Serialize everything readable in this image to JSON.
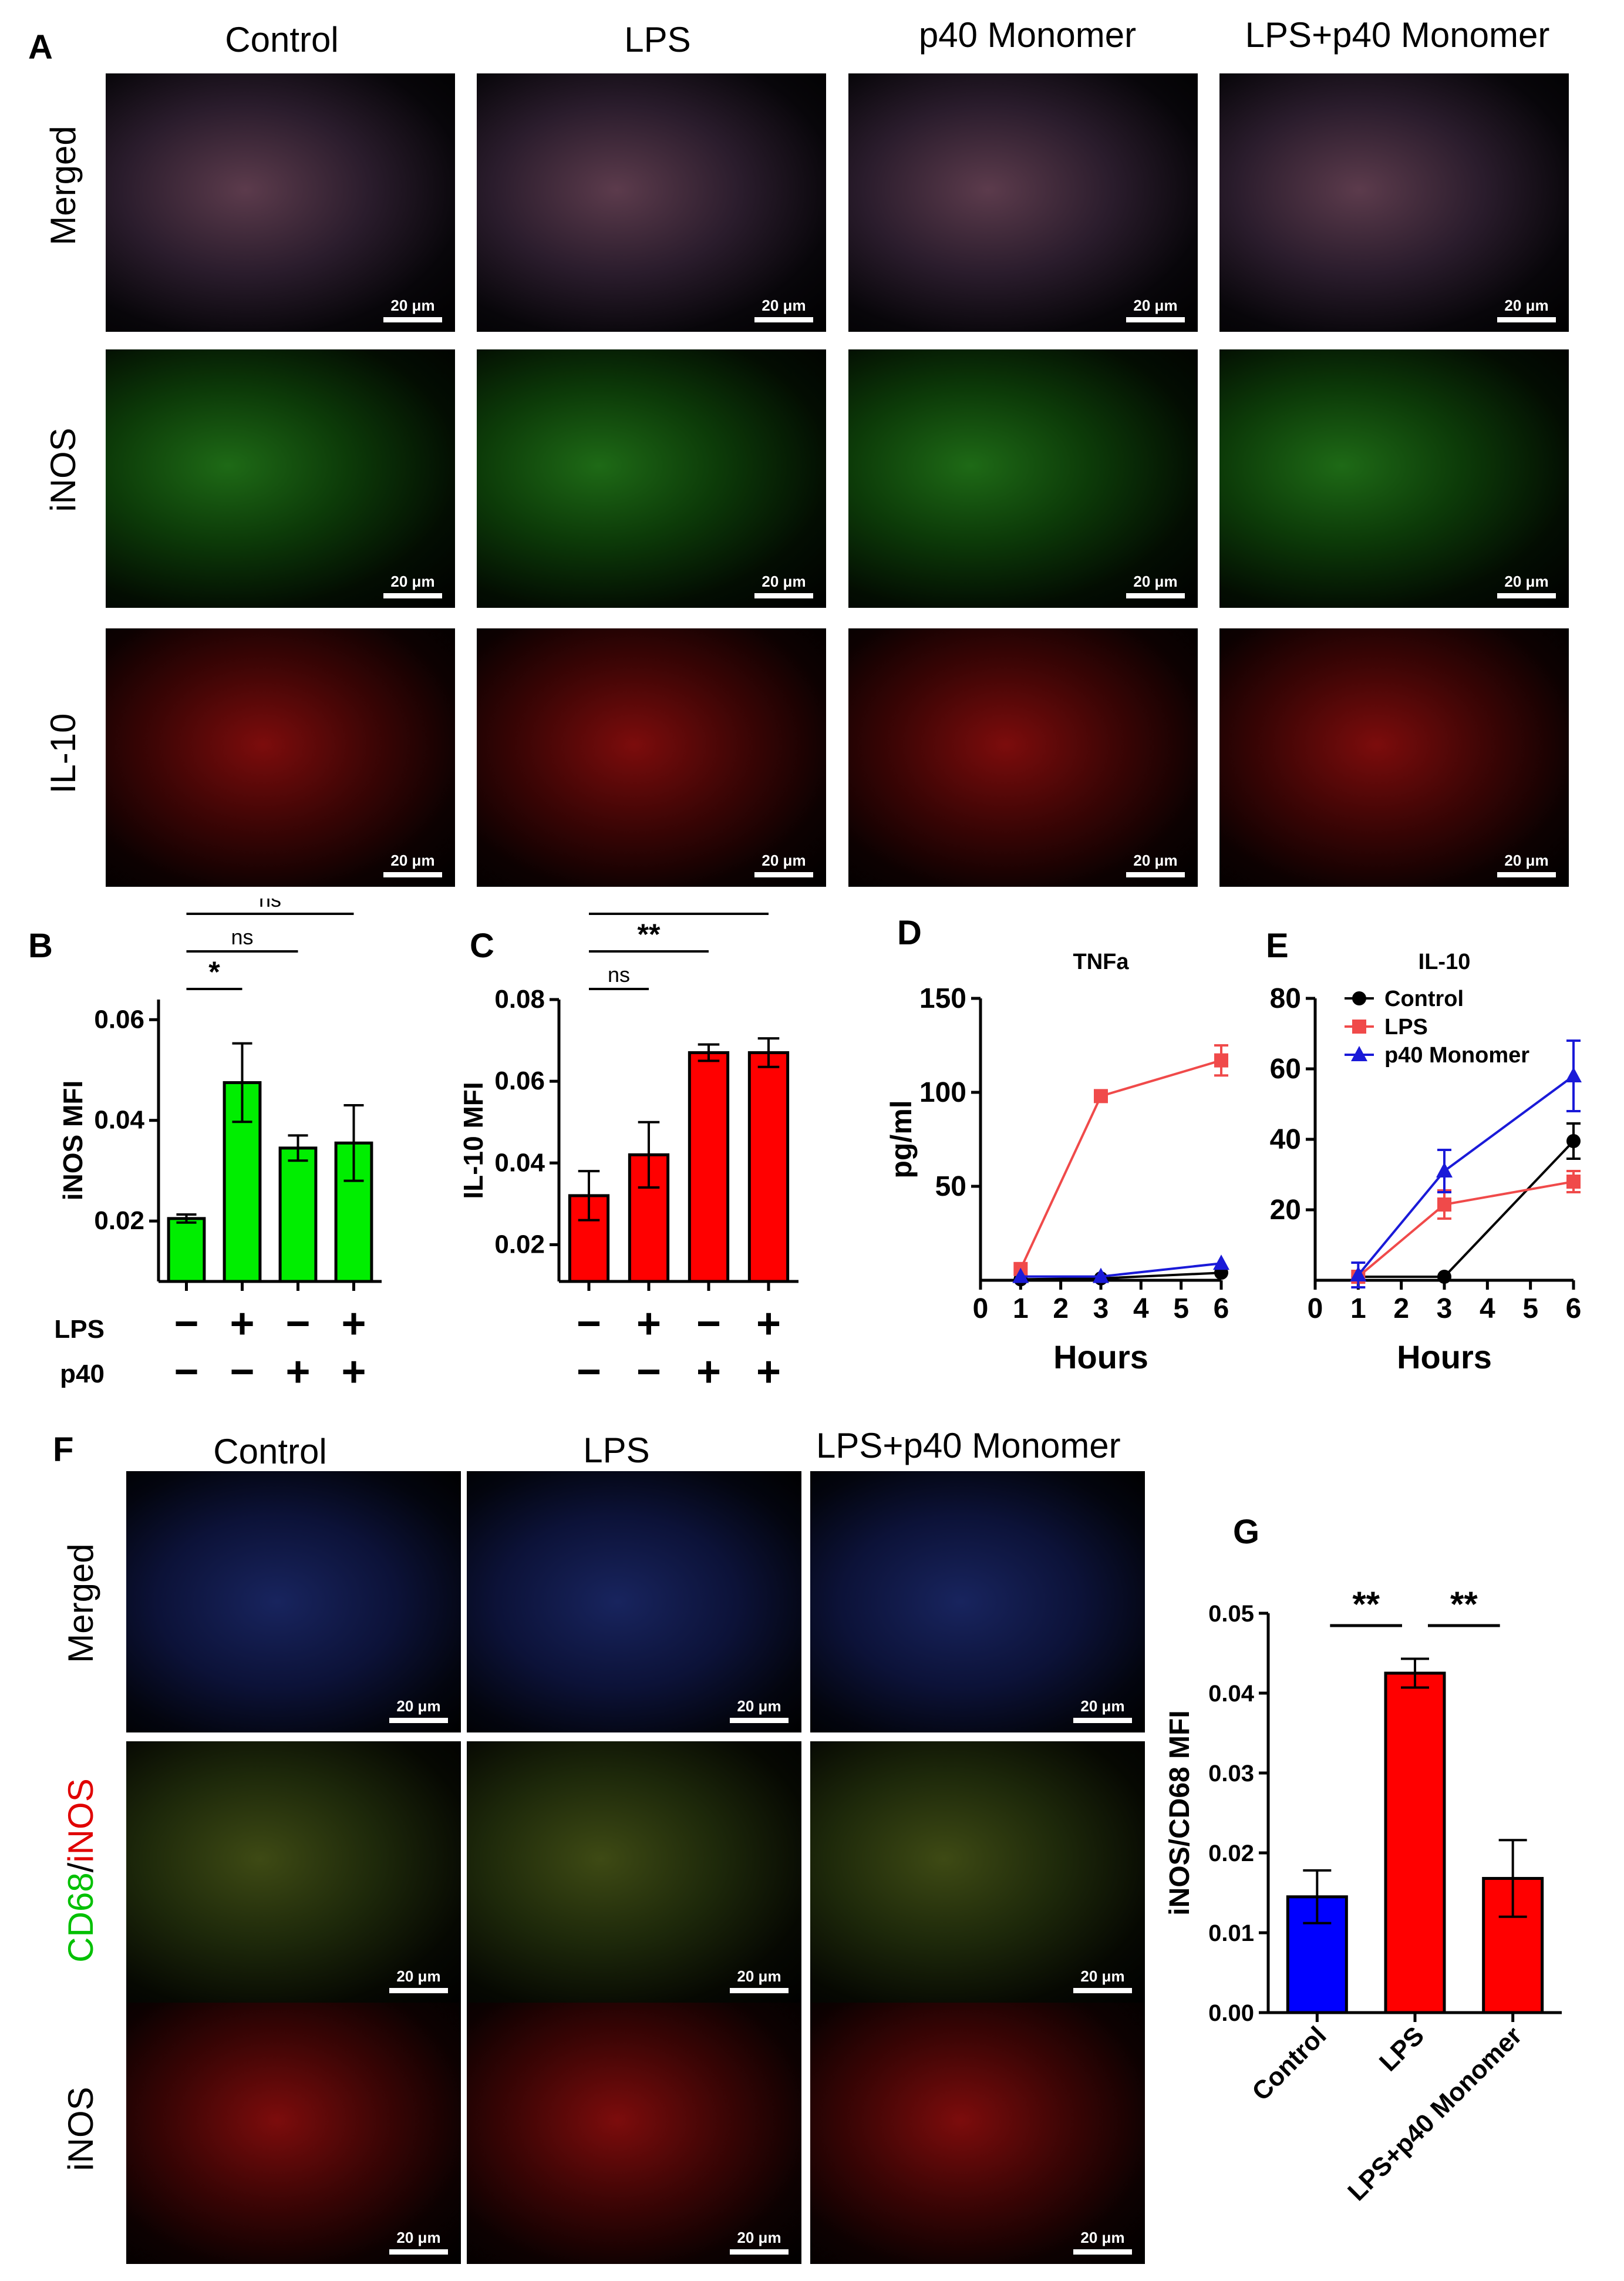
{
  "panel_letters": {
    "A": "A",
    "B": "B",
    "C": "C",
    "D": "D",
    "E": "E",
    "F": "F",
    "G": "G"
  },
  "panelA": {
    "columns": [
      "Control",
      "LPS",
      "p40 Monomer",
      "LPS+p40 Monomer"
    ],
    "rows": [
      "Merged",
      "iNOS",
      "IL-10"
    ],
    "scale_bar": "20 μm"
  },
  "panelF": {
    "columns": [
      "Control",
      "LPS",
      "LPS+p40 Monomer"
    ],
    "rows": [
      "Merged",
      "CD68/iNOS",
      "iNOS"
    ],
    "row_label_parts": {
      "cd68": "CD68",
      "slash": "/",
      "inos": "iNOS"
    },
    "scale_bar": "20 μm"
  },
  "colors": {
    "green": "#00ee00",
    "red": "#ff0000",
    "blue": "#0000ff",
    "black": "#000000",
    "lps_line": "#f04a4a",
    "p40_line": "#1a1ad8"
  },
  "treatment_labels": {
    "lps": "LPS",
    "p40": "p40",
    "minus": "−",
    "plus": "+"
  },
  "chart_data": [
    {
      "id": "B",
      "type": "bar",
      "ylabel": "iNOS MFI",
      "yticks": [
        "0.02",
        "0.04",
        "0.06"
      ],
      "ylim": [
        0.008,
        0.064
      ],
      "values": [
        0.0205,
        0.0475,
        0.0345,
        0.0355
      ],
      "errors": [
        0.0008,
        0.0078,
        0.0025,
        0.0075
      ],
      "color": "#00ee00",
      "lps": [
        "−",
        "+",
        "−",
        "+"
      ],
      "p40": [
        "−",
        "−",
        "+",
        "+"
      ],
      "sig": [
        {
          "from": 0,
          "to": 1,
          "text": "*"
        },
        {
          "from": 0,
          "to": 2,
          "text": "ns"
        },
        {
          "from": 0,
          "to": 3,
          "text": "ns"
        }
      ]
    },
    {
      "id": "C",
      "type": "bar",
      "ylabel": "IL-10 MFI",
      "yticks": [
        "0.02",
        "0.04",
        "0.06",
        "0.08"
      ],
      "ylim": [
        0.011,
        0.08
      ],
      "values": [
        0.032,
        0.042,
        0.067,
        0.067
      ],
      "errors": [
        0.006,
        0.008,
        0.002,
        0.0035
      ],
      "color": "#ff0000",
      "lps": [
        "−",
        "+",
        "−",
        "+"
      ],
      "p40": [
        "−",
        "−",
        "+",
        "+"
      ],
      "sig": [
        {
          "from": 0,
          "to": 1,
          "text": "ns"
        },
        {
          "from": 0,
          "to": 2,
          "text": "**"
        },
        {
          "from": 0,
          "to": 3,
          "text": "**"
        }
      ]
    },
    {
      "id": "D",
      "type": "line",
      "title": "TNFa",
      "xlabel": "Hours",
      "ylabel": "pg/ml",
      "xticks": [
        "0",
        "1",
        "2",
        "3",
        "4",
        "5",
        "6"
      ],
      "yticks": [
        "50",
        "100",
        "150"
      ],
      "xlim": [
        0,
        6
      ],
      "ylim": [
        0,
        150
      ],
      "series": [
        {
          "name": "Control",
          "color": "#000000",
          "marker": "circle",
          "x": [
            1,
            3,
            6
          ],
          "y": [
            0.5,
            1,
            4
          ],
          "err": [
            0,
            0,
            0
          ]
        },
        {
          "name": "LPS",
          "color": "#f04a4a",
          "marker": "square",
          "x": [
            1,
            3,
            6
          ],
          "y": [
            6,
            98,
            117
          ],
          "err": [
            0,
            0,
            8
          ]
        },
        {
          "name": "p40 Monomer",
          "color": "#1a1ad8",
          "marker": "triangle",
          "x": [
            1,
            3,
            6
          ],
          "y": [
            2,
            2,
            9
          ],
          "err": [
            0,
            0,
            0
          ]
        }
      ]
    },
    {
      "id": "E",
      "type": "line",
      "title": "IL-10",
      "xlabel": "Hours",
      "xticks": [
        "0",
        "1",
        "2",
        "3",
        "4",
        "5",
        "6"
      ],
      "yticks": [
        "20",
        "40",
        "60",
        "80"
      ],
      "xlim": [
        0,
        6
      ],
      "ylim": [
        0,
        80
      ],
      "legend": [
        "Control",
        "LPS",
        "p40 Monomer"
      ],
      "series": [
        {
          "name": "Control",
          "color": "#000000",
          "marker": "circle",
          "x": [
            1,
            3,
            6
          ],
          "y": [
            1,
            1,
            39.5
          ],
          "err": [
            0,
            0,
            5
          ]
        },
        {
          "name": "LPS",
          "color": "#f04a4a",
          "marker": "square",
          "x": [
            1,
            3,
            6
          ],
          "y": [
            1,
            21.5,
            28
          ],
          "err": [
            0,
            4,
            3
          ]
        },
        {
          "name": "p40 Monomer",
          "color": "#1a1ad8",
          "marker": "triangle",
          "x": [
            1,
            3,
            6
          ],
          "y": [
            1.5,
            31,
            58
          ],
          "err": [
            3.5,
            6,
            10
          ]
        }
      ]
    },
    {
      "id": "G",
      "type": "bar",
      "ylabel": "iNOS/CD68 MFI",
      "categories": [
        "Control",
        "LPS",
        "LPS+p40 Monomer"
      ],
      "yticks": [
        "0.00",
        "0.01",
        "0.02",
        "0.03",
        "0.04",
        "0.05"
      ],
      "ylim": [
        0,
        0.05
      ],
      "values": [
        0.0145,
        0.0425,
        0.0168
      ],
      "errors": [
        0.0033,
        0.0018,
        0.0048
      ],
      "colors": [
        "#0000ff",
        "#ff0000",
        "#ff0000"
      ],
      "sig": [
        {
          "from": 0,
          "to": 1,
          "text": "**"
        },
        {
          "from": 1,
          "to": 2,
          "text": "**"
        }
      ]
    }
  ]
}
